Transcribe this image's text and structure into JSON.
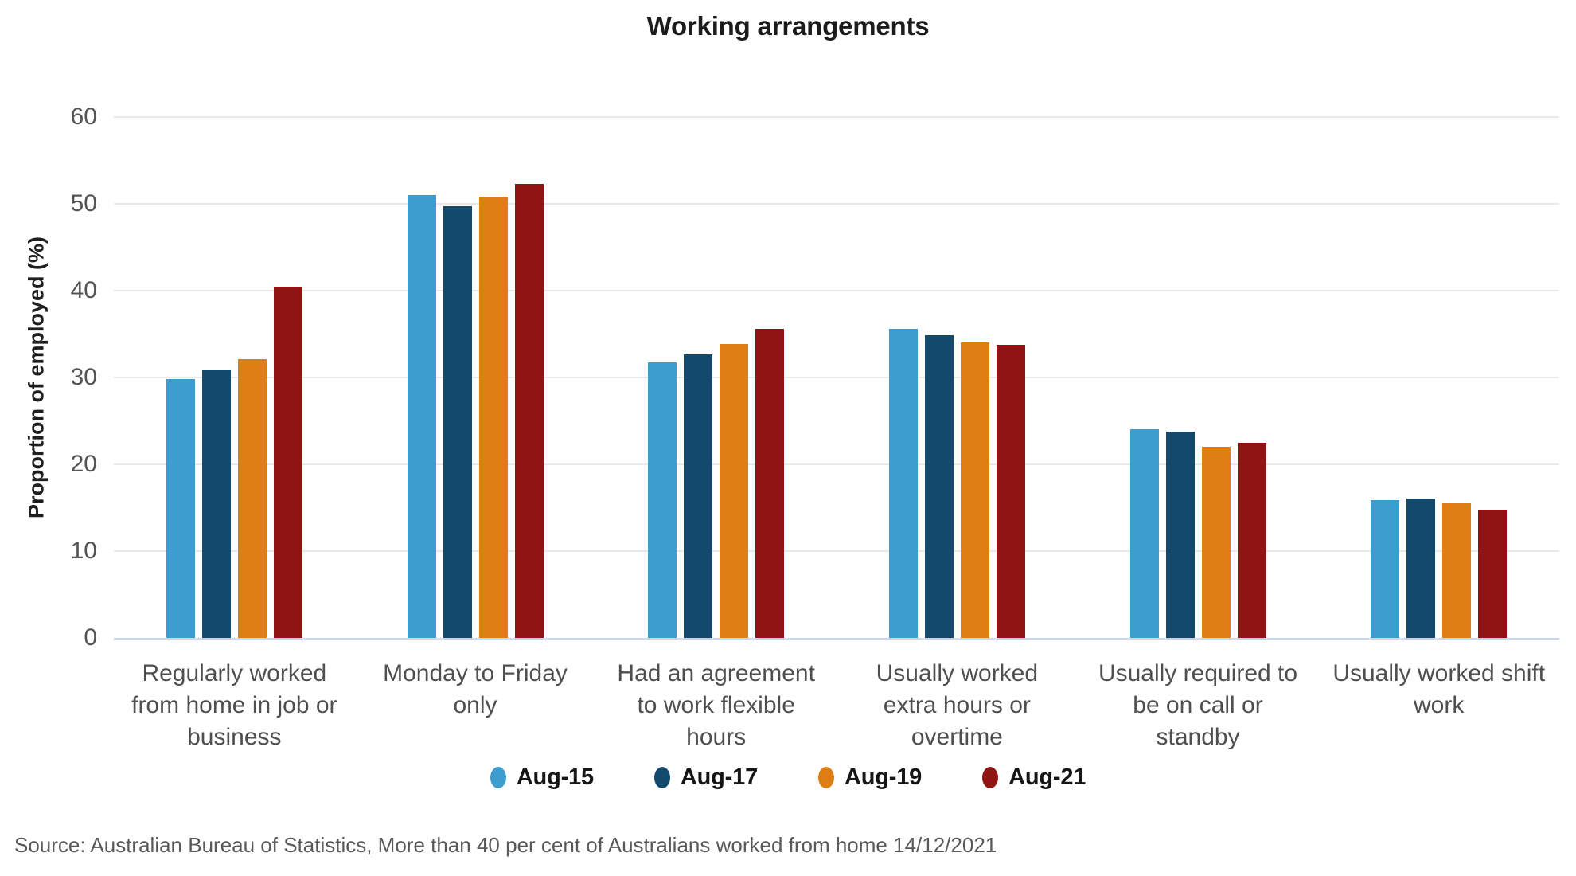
{
  "source_note": "Source: Australian Bureau of Statistics, More than 40 per cent of Australians worked from home 14/12/2021",
  "colors": {
    "grid": "#e9e9e9",
    "baseline": "#cdd7e7",
    "title_text": "#1c1c1c",
    "axis_text": "#545454",
    "category_text": "#4f4f4f",
    "source_text": "#595959"
  },
  "chart_data": {
    "type": "bar",
    "title": "Working arrangements",
    "xlabel": "",
    "ylabel": "Proportion of employed (%)",
    "ylim": [
      0,
      60
    ],
    "yticks": [
      0,
      10,
      20,
      30,
      40,
      50,
      60
    ],
    "grid": true,
    "legend_position": "bottom",
    "categories": [
      "Regularly worked from home in job or business",
      "Monday to Friday only",
      "Had an agreement to work flexible hours",
      "Usually worked extra hours or overtime",
      "Usually required to be on call or standby",
      "Usually worked shift work"
    ],
    "category_label_lines": [
      [
        "Regularly worked",
        "from home in job or",
        "business"
      ],
      [
        "Monday to Friday",
        "only"
      ],
      [
        "Had an agreement",
        "to work flexible",
        "hours"
      ],
      [
        "Usually worked",
        "extra hours or",
        "overtime"
      ],
      [
        "Usually required to",
        "be on call or",
        "standby"
      ],
      [
        "Usually worked shift",
        "work"
      ]
    ],
    "series": [
      {
        "name": "Aug-15",
        "color": "#3D9DCE",
        "values": [
          29.8,
          51.0,
          31.7,
          35.6,
          24.0,
          15.9
        ]
      },
      {
        "name": "Aug-17",
        "color": "#14496E",
        "values": [
          30.9,
          49.7,
          32.7,
          34.9,
          23.8,
          16.1
        ]
      },
      {
        "name": "Aug-19",
        "color": "#DF7E14",
        "values": [
          32.1,
          50.8,
          33.9,
          34.0,
          22.0,
          15.5
        ]
      },
      {
        "name": "Aug-21",
        "color": "#911414",
        "values": [
          40.5,
          52.3,
          35.6,
          33.8,
          22.5,
          14.8
        ]
      }
    ]
  }
}
